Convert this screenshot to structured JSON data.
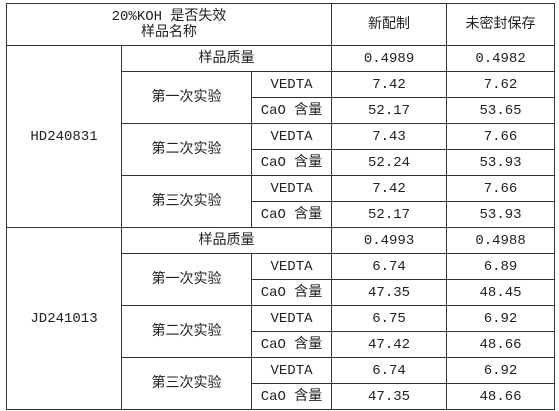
{
  "header": {
    "title_lines": [
      "20%KOH 是否失效",
      "样品名称"
    ],
    "columns": [
      "新配制",
      "未密封保存"
    ]
  },
  "samples": [
    {
      "name": "HD240831",
      "mass_label": "样品质量",
      "mass": [
        "0.4989",
        "0.4982"
      ],
      "trials": [
        {
          "label": "第一次实验",
          "rows": [
            {
              "label": "VEDTA",
              "values": [
                "7.42",
                "7.62"
              ]
            },
            {
              "label": "CaO 含量",
              "values": [
                "52.17",
                "53.65"
              ]
            }
          ]
        },
        {
          "label": "第二次实验",
          "rows": [
            {
              "label": "VEDTA",
              "values": [
                "7.43",
                "7.66"
              ]
            },
            {
              "label": "CaO 含量",
              "values": [
                "52.24",
                "53.93"
              ]
            }
          ]
        },
        {
          "label": "第三次实验",
          "rows": [
            {
              "label": "VEDTA",
              "values": [
                "7.42",
                "7.66"
              ]
            },
            {
              "label": "CaO 含量",
              "values": [
                "52.17",
                "53.93"
              ]
            }
          ]
        }
      ]
    },
    {
      "name": "JD241013",
      "mass_label": "样品质量",
      "mass": [
        "0.4993",
        "0.4988"
      ],
      "trials": [
        {
          "label": "第一次实验",
          "rows": [
            {
              "label": "VEDTA",
              "values": [
                "6.74",
                "6.89"
              ]
            },
            {
              "label": "CaO 含量",
              "values": [
                "47.35",
                "48.45"
              ]
            }
          ]
        },
        {
          "label": "第二次实验",
          "rows": [
            {
              "label": "VEDTA",
              "values": [
                "6.75",
                "6.92"
              ]
            },
            {
              "label": "CaO 含量",
              "values": [
                "47.42",
                "48.66"
              ]
            }
          ]
        },
        {
          "label": "第三次实验",
          "rows": [
            {
              "label": "VEDTA",
              "values": [
                "6.74",
                "6.92"
              ]
            },
            {
              "label": "CaO 含量",
              "values": [
                "47.35",
                "48.66"
              ]
            }
          ]
        }
      ]
    }
  ]
}
